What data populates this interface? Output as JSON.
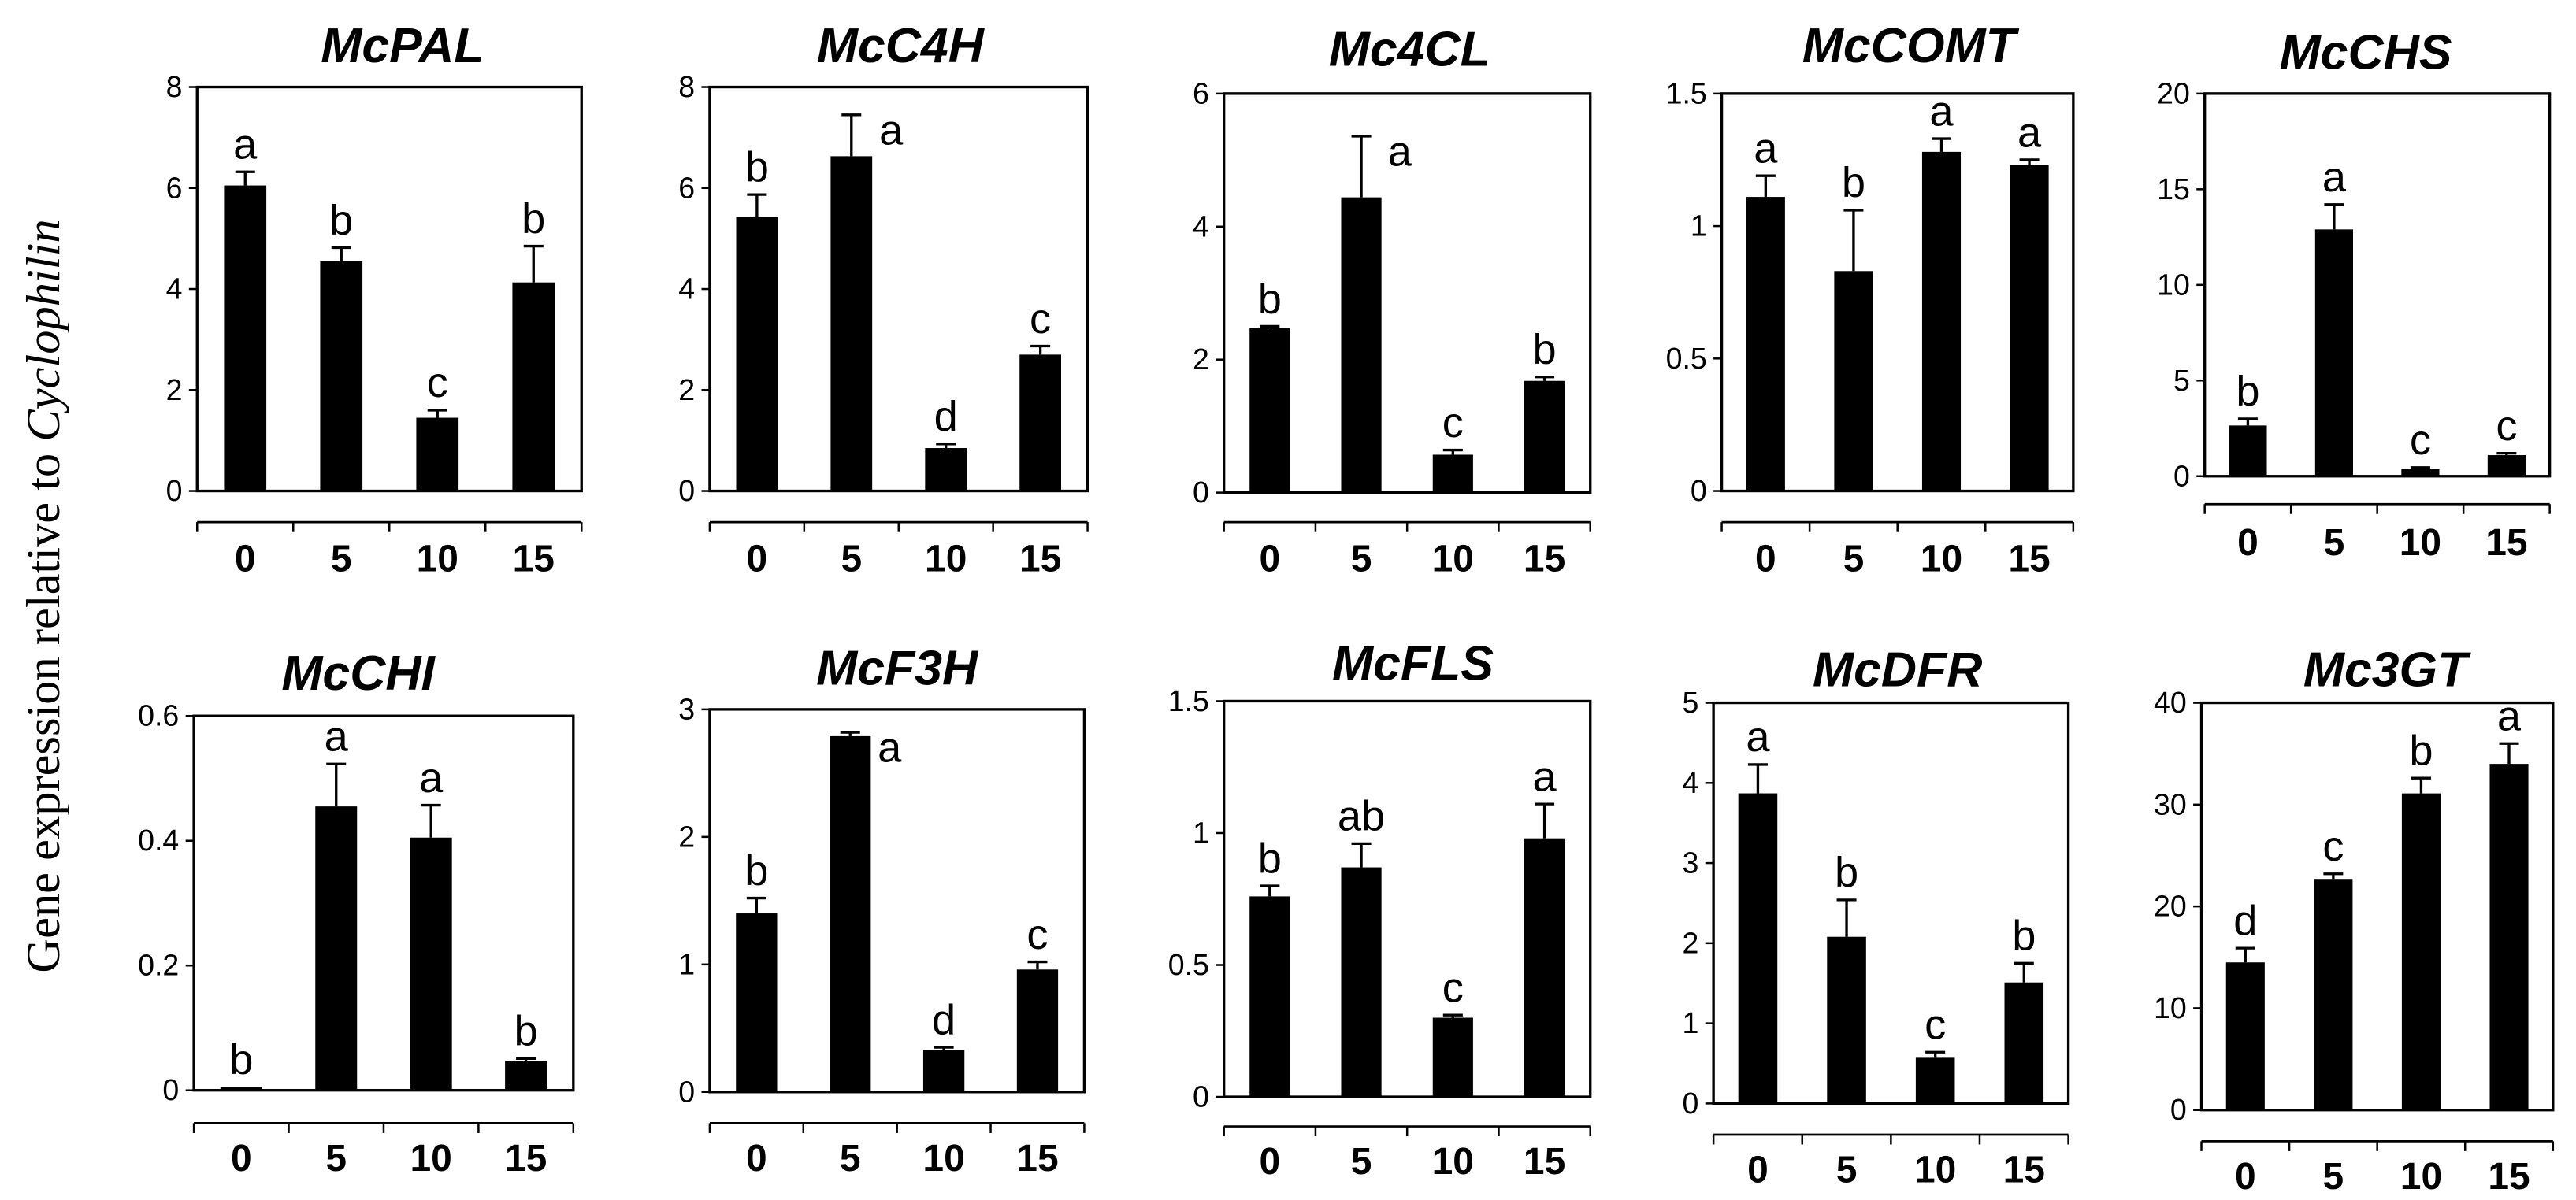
{
  "ylabel": {
    "prefix": "Gene expression relative to ",
    "gene": "Cyclophilin"
  },
  "colors": {
    "bar": "#000000",
    "frame": "#000000",
    "background": "#ffffff"
  },
  "chart_data": [
    {
      "type": "bar",
      "title": "McPAL",
      "categories": [
        "0",
        "5",
        "10",
        "15"
      ],
      "values": [
        6.05,
        4.55,
        1.45,
        4.13
      ],
      "errors": [
        0.27,
        0.27,
        0.15,
        0.72
      ],
      "letters": [
        "a",
        "b",
        "c",
        "b"
      ],
      "ylim": [
        0,
        8
      ],
      "yticks": [
        0,
        2,
        4,
        6,
        8
      ]
    },
    {
      "type": "bar",
      "title": "McC4H",
      "categories": [
        "0",
        "5",
        "10",
        "15"
      ],
      "values": [
        5.42,
        6.63,
        0.85,
        2.7
      ],
      "errors": [
        0.45,
        0.82,
        0.08,
        0.17
      ],
      "letters": [
        "b",
        "a",
        "d",
        "c"
      ],
      "ylim": [
        0,
        8
      ],
      "yticks": [
        0,
        2,
        4,
        6,
        8
      ]
    },
    {
      "type": "bar",
      "title": "Mc4CL",
      "categories": [
        "0",
        "5",
        "10",
        "15"
      ],
      "values": [
        2.47,
        4.44,
        0.57,
        1.68
      ],
      "errors": [
        0.03,
        0.92,
        0.07,
        0.06
      ],
      "letters": [
        "b",
        "a",
        "c",
        "b"
      ],
      "ylim": [
        0,
        6
      ],
      "yticks": [
        0,
        2,
        4,
        6
      ]
    },
    {
      "type": "bar",
      "title": "McCOMT",
      "categories": [
        "0",
        "5",
        "10",
        "15"
      ],
      "values": [
        1.11,
        0.83,
        1.28,
        1.23
      ],
      "errors": [
        0.08,
        0.23,
        0.05,
        0.02
      ],
      "letters": [
        "a",
        "b",
        "a",
        "a"
      ],
      "ylim": [
        0,
        1.5
      ],
      "yticks": [
        0,
        0.5,
        1,
        1.5
      ]
    },
    {
      "type": "bar",
      "title": "McCHS",
      "categories": [
        "0",
        "5",
        "10",
        "15"
      ],
      "values": [
        2.65,
        12.9,
        0.4,
        1.1
      ],
      "errors": [
        0.35,
        1.3,
        0.05,
        0.1
      ],
      "letters": [
        "b",
        "a",
        "c",
        "c"
      ],
      "ylim": [
        0,
        20
      ],
      "yticks": [
        0,
        5,
        10,
        15,
        20
      ]
    },
    {
      "type": "bar",
      "title": "McCHI",
      "categories": [
        "0",
        "5",
        "10",
        "15"
      ],
      "values": [
        0.005,
        0.455,
        0.405,
        0.047
      ],
      "errors": [
        0,
        0.068,
        0.052,
        0.004
      ],
      "letters": [
        "b",
        "a",
        "a",
        "b"
      ],
      "ylim": [
        0,
        0.6
      ],
      "yticks": [
        0,
        0.2,
        0.4,
        0.6
      ]
    },
    {
      "type": "bar",
      "title": "McF3H",
      "categories": [
        "0",
        "5",
        "10",
        "15"
      ],
      "values": [
        1.4,
        2.79,
        0.33,
        0.96
      ],
      "errors": [
        0.12,
        0.03,
        0.02,
        0.06
      ],
      "letters": [
        "b",
        "a",
        "d",
        "c"
      ],
      "ylim": [
        0,
        3
      ],
      "yticks": [
        0,
        1,
        2,
        3
      ]
    },
    {
      "type": "bar",
      "title": "McFLS",
      "categories": [
        "0",
        "5",
        "10",
        "15"
      ],
      "values": [
        0.76,
        0.87,
        0.3,
        0.98
      ],
      "errors": [
        0.04,
        0.09,
        0.01,
        0.13
      ],
      "letters": [
        "b",
        "ab",
        "c",
        "a"
      ],
      "ylim": [
        0,
        1.5
      ],
      "yticks": [
        0,
        0.5,
        1,
        1.5
      ]
    },
    {
      "type": "bar",
      "title": "McDFR",
      "categories": [
        "0",
        "5",
        "10",
        "15"
      ],
      "values": [
        3.87,
        2.08,
        0.57,
        1.51
      ],
      "errors": [
        0.36,
        0.46,
        0.07,
        0.24
      ],
      "letters": [
        "a",
        "b",
        "c",
        "b"
      ],
      "ylim": [
        0,
        5
      ],
      "yticks": [
        0,
        1,
        2,
        3,
        4,
        5
      ]
    },
    {
      "type": "bar",
      "title": "Mc3GT",
      "categories": [
        "0",
        "5",
        "10",
        "15"
      ],
      "values": [
        14.5,
        22.7,
        31.1,
        34.0
      ],
      "errors": [
        1.4,
        0.5,
        1.5,
        2.0
      ],
      "letters": [
        "d",
        "c",
        "b",
        "a"
      ],
      "ylim": [
        0,
        40
      ],
      "yticks": [
        0,
        10,
        20,
        30,
        40
      ]
    }
  ]
}
